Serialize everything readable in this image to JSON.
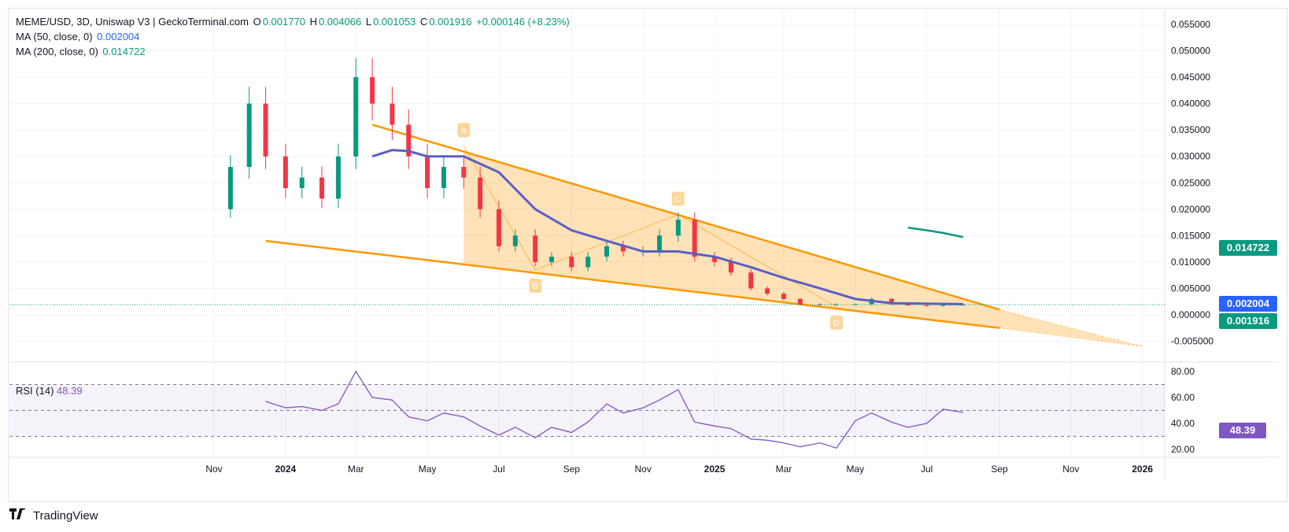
{
  "header": {
    "symbol": "MEME/USD, 3D, Uniswap V3 | GeckoTerminal.com",
    "o_label": "O",
    "o_value": "0.001770",
    "h_label": "H",
    "h_value": "0.004066",
    "l_label": "L",
    "l_value": "0.001053",
    "c_label": "C",
    "c_value": "0.001916",
    "change": "+0.000146 (+8.23%)"
  },
  "indicators": {
    "ma50_label": "MA (50, close, 0)",
    "ma50_value": "0.002004",
    "ma200_label": "MA (200, close, 0)",
    "ma200_value": "0.014722",
    "rsi_label": "RSI (14)",
    "rsi_value": "48.39"
  },
  "badges": {
    "ma200": "0.014722",
    "ma50": "0.002004",
    "last": "0.001916",
    "rsi": "48.39"
  },
  "colors": {
    "up": "#089981",
    "down": "#f23645",
    "ma50": "#5b5fc7",
    "ma200": "#089981",
    "pattern": "#ff9800",
    "rsi": "#7e57c2",
    "grid": "#f0f3fa"
  },
  "footer": {
    "brand": "TradingView"
  },
  "chart_data": [
    {
      "type": "candlestick",
      "title": "MEME/USD, 3D, Uniswap V3 | GeckoTerminal.com",
      "price_ticks": [
        "0.055000",
        "0.050000",
        "0.045000",
        "0.040000",
        "0.035000",
        "0.030000",
        "0.025000",
        "0.020000",
        "0.015000",
        "0.010000",
        "0.005000",
        "0.000000",
        "-0.005000"
      ],
      "time_ticks": [
        "Nov",
        "2024",
        "Mar",
        "May",
        "Jul",
        "Sep",
        "Nov",
        "2025",
        "Mar",
        "May",
        "Jul",
        "Sep",
        "Nov",
        "2026"
      ],
      "ylim": [
        -0.0065,
        0.0585
      ],
      "close_series": [
        {
          "date": "2023-11-01",
          "value": 0.02
        },
        {
          "date": "2023-11-15",
          "value": 0.028
        },
        {
          "date": "2023-12-01",
          "value": 0.04
        },
        {
          "date": "2023-12-15",
          "value": 0.03
        },
        {
          "date": "2024-01-01",
          "value": 0.024
        },
        {
          "date": "2024-01-15",
          "value": 0.026
        },
        {
          "date": "2024-02-01",
          "value": 0.022
        },
        {
          "date": "2024-02-15",
          "value": 0.03
        },
        {
          "date": "2024-03-01",
          "value": 0.045
        },
        {
          "date": "2024-03-15",
          "value": 0.04
        },
        {
          "date": "2024-04-01",
          "value": 0.036
        },
        {
          "date": "2024-04-15",
          "value": 0.03
        },
        {
          "date": "2024-05-01",
          "value": 0.024
        },
        {
          "date": "2024-05-15",
          "value": 0.028
        },
        {
          "date": "2024-06-01",
          "value": 0.026
        },
        {
          "date": "2024-06-15",
          "value": 0.02
        },
        {
          "date": "2024-07-01",
          "value": 0.013
        },
        {
          "date": "2024-07-15",
          "value": 0.015
        },
        {
          "date": "2024-08-01",
          "value": 0.01
        },
        {
          "date": "2024-08-15",
          "value": 0.011
        },
        {
          "date": "2024-09-01",
          "value": 0.009
        },
        {
          "date": "2024-09-15",
          "value": 0.011
        },
        {
          "date": "2024-10-01",
          "value": 0.013
        },
        {
          "date": "2024-10-15",
          "value": 0.012
        },
        {
          "date": "2024-11-01",
          "value": 0.012
        },
        {
          "date": "2024-11-15",
          "value": 0.015
        },
        {
          "date": "2024-12-01",
          "value": 0.018
        },
        {
          "date": "2024-12-15",
          "value": 0.011
        },
        {
          "date": "2025-01-01",
          "value": 0.01
        },
        {
          "date": "2025-01-15",
          "value": 0.008
        },
        {
          "date": "2025-02-01",
          "value": 0.005
        },
        {
          "date": "2025-02-15",
          "value": 0.004
        },
        {
          "date": "2025-03-01",
          "value": 0.003
        },
        {
          "date": "2025-03-15",
          "value": 0.002
        },
        {
          "date": "2025-04-01",
          "value": 0.002
        },
        {
          "date": "2025-04-15",
          "value": 0.002
        },
        {
          "date": "2025-05-01",
          "value": 0.002
        },
        {
          "date": "2025-05-15",
          "value": 0.003
        },
        {
          "date": "2025-06-01",
          "value": 0.002
        },
        {
          "date": "2025-06-15",
          "value": 0.0018
        },
        {
          "date": "2025-07-01",
          "value": 0.0017
        },
        {
          "date": "2025-07-15",
          "value": 0.0019
        },
        {
          "date": "2025-08-01",
          "value": 0.001916
        }
      ],
      "ma50": [
        {
          "date": "2024-03-15",
          "value": 0.03
        },
        {
          "date": "2024-04-01",
          "value": 0.0312
        },
        {
          "date": "2024-04-15",
          "value": 0.031
        },
        {
          "date": "2024-05-01",
          "value": 0.03
        },
        {
          "date": "2024-06-01",
          "value": 0.03
        },
        {
          "date": "2024-07-01",
          "value": 0.027
        },
        {
          "date": "2024-08-01",
          "value": 0.02
        },
        {
          "date": "2024-09-01",
          "value": 0.016
        },
        {
          "date": "2024-10-01",
          "value": 0.014
        },
        {
          "date": "2024-11-01",
          "value": 0.012
        },
        {
          "date": "2024-12-01",
          "value": 0.012
        },
        {
          "date": "2025-01-01",
          "value": 0.011
        },
        {
          "date": "2025-02-01",
          "value": 0.009
        },
        {
          "date": "2025-03-01",
          "value": 0.007
        },
        {
          "date": "2025-04-01",
          "value": 0.005
        },
        {
          "date": "2025-05-01",
          "value": 0.003
        },
        {
          "date": "2025-06-01",
          "value": 0.0022
        },
        {
          "date": "2025-08-01",
          "value": 0.002004
        }
      ],
      "ma200": [
        {
          "date": "2025-06-15",
          "value": 0.0165
        },
        {
          "date": "2025-07-01",
          "value": 0.016
        },
        {
          "date": "2025-07-15",
          "value": 0.0155
        },
        {
          "date": "2025-08-01",
          "value": 0.014722
        }
      ],
      "pattern_points": [
        {
          "label": "A",
          "date": "2024-06-01",
          "value": 0.032
        },
        {
          "label": "B",
          "date": "2024-08-01",
          "value": 0.0085
        },
        {
          "label": "C",
          "date": "2024-12-01",
          "value": 0.019
        },
        {
          "label": "D",
          "date": "2025-04-15",
          "value": 0.0015
        }
      ],
      "trendlines": {
        "upper": [
          {
            "date": "2024-03-15",
            "value": 0.036
          },
          {
            "date": "2025-09-01",
            "value": 0.001
          }
        ],
        "lower": [
          {
            "date": "2023-12-15",
            "value": 0.014
          },
          {
            "date": "2025-09-01",
            "value": -0.0025
          }
        ]
      },
      "last_price": 0.001916
    },
    {
      "type": "line",
      "title": "RSI (14)",
      "ylim": [
        15,
        85
      ],
      "y_ticks": [
        "80.00",
        "60.00",
        "40.00",
        "20.00"
      ],
      "bands": [
        30,
        50,
        70
      ],
      "series": [
        {
          "date": "2023-12-15",
          "value": 57
        },
        {
          "date": "2024-01-01",
          "value": 52
        },
        {
          "date": "2024-01-15",
          "value": 53
        },
        {
          "date": "2024-02-01",
          "value": 50
        },
        {
          "date": "2024-02-15",
          "value": 55
        },
        {
          "date": "2024-03-01",
          "value": 80
        },
        {
          "date": "2024-03-15",
          "value": 60
        },
        {
          "date": "2024-04-01",
          "value": 58
        },
        {
          "date": "2024-04-15",
          "value": 45
        },
        {
          "date": "2024-05-01",
          "value": 42
        },
        {
          "date": "2024-05-15",
          "value": 48
        },
        {
          "date": "2024-06-01",
          "value": 45
        },
        {
          "date": "2024-06-15",
          "value": 38
        },
        {
          "date": "2024-07-01",
          "value": 31
        },
        {
          "date": "2024-07-15",
          "value": 37
        },
        {
          "date": "2024-08-01",
          "value": 29
        },
        {
          "date": "2024-08-15",
          "value": 37
        },
        {
          "date": "2024-09-01",
          "value": 33
        },
        {
          "date": "2024-09-15",
          "value": 41
        },
        {
          "date": "2024-10-01",
          "value": 55
        },
        {
          "date": "2024-10-15",
          "value": 48
        },
        {
          "date": "2024-11-01",
          "value": 52
        },
        {
          "date": "2024-11-15",
          "value": 58
        },
        {
          "date": "2024-12-01",
          "value": 66
        },
        {
          "date": "2024-12-15",
          "value": 41
        },
        {
          "date": "2025-01-01",
          "value": 38
        },
        {
          "date": "2025-01-15",
          "value": 36
        },
        {
          "date": "2025-02-01",
          "value": 28
        },
        {
          "date": "2025-02-15",
          "value": 27
        },
        {
          "date": "2025-03-01",
          "value": 25
        },
        {
          "date": "2025-03-15",
          "value": 22
        },
        {
          "date": "2025-04-01",
          "value": 25
        },
        {
          "date": "2025-04-15",
          "value": 21
        },
        {
          "date": "2025-05-01",
          "value": 42
        },
        {
          "date": "2025-05-15",
          "value": 48
        },
        {
          "date": "2025-06-01",
          "value": 41
        },
        {
          "date": "2025-06-15",
          "value": 37
        },
        {
          "date": "2025-07-01",
          "value": 40
        },
        {
          "date": "2025-07-15",
          "value": 51
        },
        {
          "date": "2025-08-01",
          "value": 48.39
        }
      ]
    }
  ]
}
